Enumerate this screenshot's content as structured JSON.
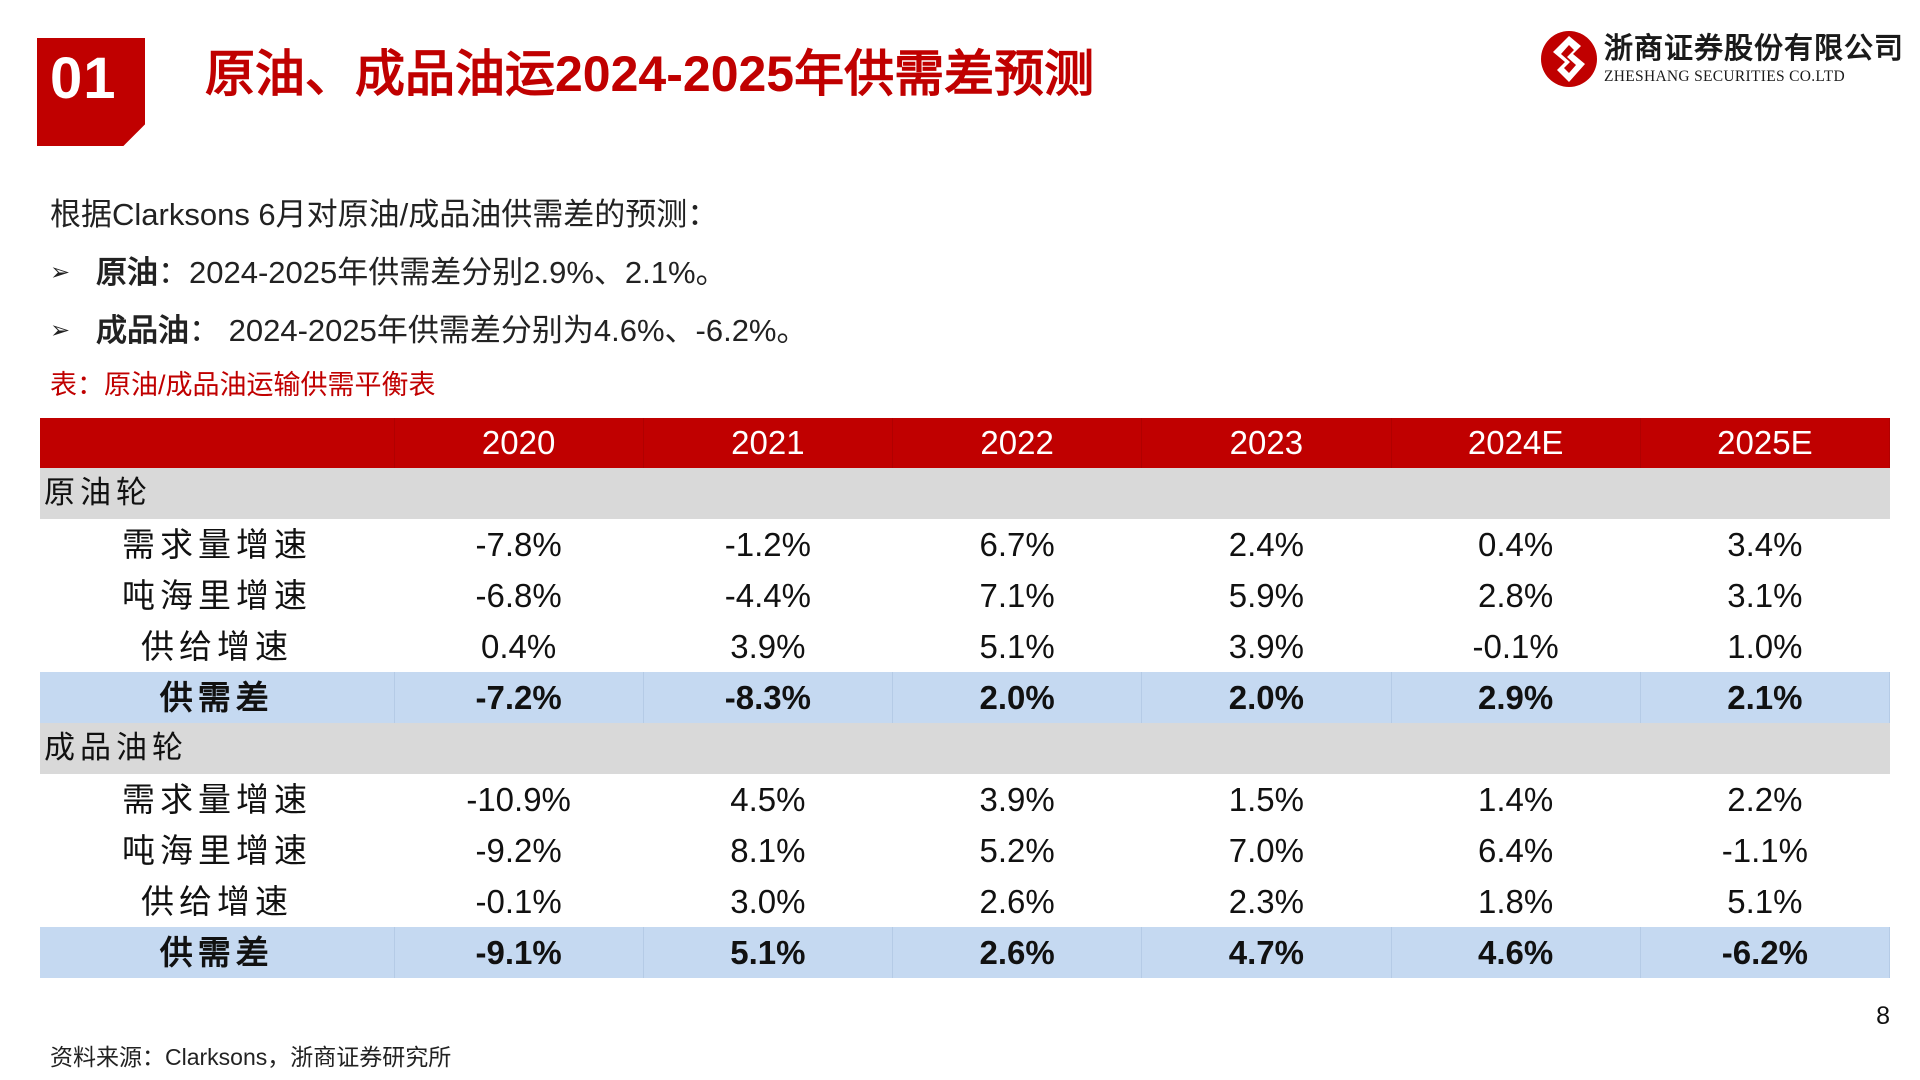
{
  "header": {
    "section_number": "01",
    "title": "原油、成品油运2024-2025年供需差预测"
  },
  "logo": {
    "name_cn": "浙商证券股份有限公司",
    "name_en": "ZHESHANG SECURITIES CO.LTD",
    "brand_color": "#c00000"
  },
  "intro": "根据Clarksons 6月对原油/成品油供需差的预测：",
  "bullets": [
    {
      "key": "原油",
      "text": "：2024-2025年供需差分别2.9%、2.1%。"
    },
    {
      "key": "成品油",
      "text": "：  2024-2025年供需差分别为4.6%、-6.2%。"
    }
  ],
  "table_caption": "表：原油/成品油运输供需平衡表",
  "table": {
    "columns": [
      "",
      "2020",
      "2021",
      "2022",
      "2023",
      "2024E",
      "2025E"
    ],
    "groups": [
      {
        "name": "原油轮",
        "rows": [
          {
            "label": "需求量增速",
            "values": [
              "-7.8%",
              "-1.2%",
              "6.7%",
              "2.4%",
              "0.4%",
              "3.4%"
            ]
          },
          {
            "label": "吨海里增速",
            "values": [
              "-6.8%",
              "-4.4%",
              "7.1%",
              "5.9%",
              "2.8%",
              "3.1%"
            ]
          },
          {
            "label": "供给增速",
            "values": [
              "0.4%",
              "3.9%",
              "5.1%",
              "3.9%",
              "-0.1%",
              "1.0%"
            ]
          },
          {
            "label": "供需差",
            "values": [
              "-7.2%",
              "-8.3%",
              "2.0%",
              "2.0%",
              "2.9%",
              "2.1%"
            ]
          }
        ]
      },
      {
        "name": "成品油轮",
        "rows": [
          {
            "label": "需求量增速",
            "values": [
              "-10.9%",
              "4.5%",
              "3.9%",
              "1.5%",
              "1.4%",
              "2.2%"
            ]
          },
          {
            "label": "吨海里增速",
            "values": [
              "-9.2%",
              "8.1%",
              "5.2%",
              "7.0%",
              "6.4%",
              "-1.1%"
            ]
          },
          {
            "label": "供给增速",
            "values": [
              "-0.1%",
              "3.0%",
              "2.6%",
              "2.3%",
              "1.8%",
              "5.1%"
            ]
          },
          {
            "label": "供需差",
            "values": [
              "-9.1%",
              "5.1%",
              "2.6%",
              "4.7%",
              "4.6%",
              "-6.2%"
            ]
          }
        ]
      }
    ],
    "colors": {
      "header": "#c00000",
      "group_row": "#d9d9d9",
      "highlight_row": "#c5d9f1"
    }
  },
  "page_number": "8",
  "source": "资料来源：Clarksons，浙商证券研究所"
}
